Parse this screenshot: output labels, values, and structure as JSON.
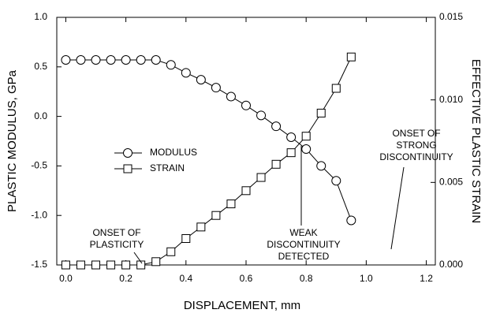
{
  "chart_data": {
    "type": "line",
    "xlabel": "DISPLACEMENT, mm",
    "ylabel": "PLASTIC MODULUS, GPa",
    "y2label": "EFFECTIVE PLASTIC STRAIN",
    "x": [
      0,
      0.05,
      0.1,
      0.15,
      0.2,
      0.25,
      0.3,
      0.35,
      0.4,
      0.45,
      0.5,
      0.55,
      0.6,
      0.65,
      0.7,
      0.75,
      0.8,
      0.85,
      0.9,
      0.95
    ],
    "series": [
      {
        "name": "MODULUS",
        "color": "#000000",
        "marker": "circle",
        "axis": "y",
        "values": [
          0.57,
          0.57,
          0.57,
          0.57,
          0.57,
          0.57,
          0.57,
          0.52,
          0.44,
          0.37,
          0.29,
          0.2,
          0.11,
          0.01,
          -0.1,
          -0.21,
          -0.33,
          -0.5,
          -0.65,
          -1.05
        ]
      },
      {
        "name": "STRAIN",
        "color": "#000000",
        "marker": "square",
        "axis": "y2",
        "values": [
          0,
          0,
          0,
          0,
          0,
          0,
          0.0002,
          0.0008,
          0.0016,
          0.0023,
          0.003,
          0.0037,
          0.0045,
          0.0053,
          0.0061,
          0.0068,
          0.0078,
          0.0092,
          0.0107,
          0.0126
        ]
      }
    ],
    "xlim": [
      -0.03,
      1.23
    ],
    "ylim": [
      -1.5,
      1.0
    ],
    "y2lim": [
      0,
      0.015
    ],
    "xticks": [
      {
        "value": 0,
        "label": "0.0"
      },
      {
        "value": 0.2,
        "label": "0.2"
      },
      {
        "value": 0.4,
        "label": "0.4"
      },
      {
        "value": 0.6,
        "label": "0.6"
      },
      {
        "value": 0.8,
        "label": "0.8"
      },
      {
        "value": 1.0,
        "label": "1.0"
      },
      {
        "value": 1.2,
        "label": "1.2"
      }
    ],
    "yticks": [
      {
        "value": -1.5,
        "label": "-1.5"
      },
      {
        "value": -1.0,
        "label": "-1.0"
      },
      {
        "value": -0.5,
        "label": "-0.5"
      },
      {
        "value": 0,
        "label": "0.0"
      },
      {
        "value": 0.5,
        "label": "0.5"
      },
      {
        "value": 1.0,
        "label": "1.0"
      }
    ],
    "y2ticks": [
      {
        "value": 0,
        "label": "0.000"
      },
      {
        "value": 0.005,
        "label": "0.005"
      },
      {
        "value": 0.01,
        "label": "0.010"
      },
      {
        "value": 0.015,
        "label": "0.015"
      }
    ],
    "legend": "center-left",
    "annotations": [
      {
        "lines": [
          "ONSET OF",
          "PLASTICITY"
        ]
      },
      {
        "lines": [
          "WEAK",
          "DISCONTINUITY",
          "DETECTED"
        ]
      },
      {
        "lines": [
          "ONSET OF",
          "STRONG",
          "DISCONTINUITY"
        ]
      }
    ]
  }
}
